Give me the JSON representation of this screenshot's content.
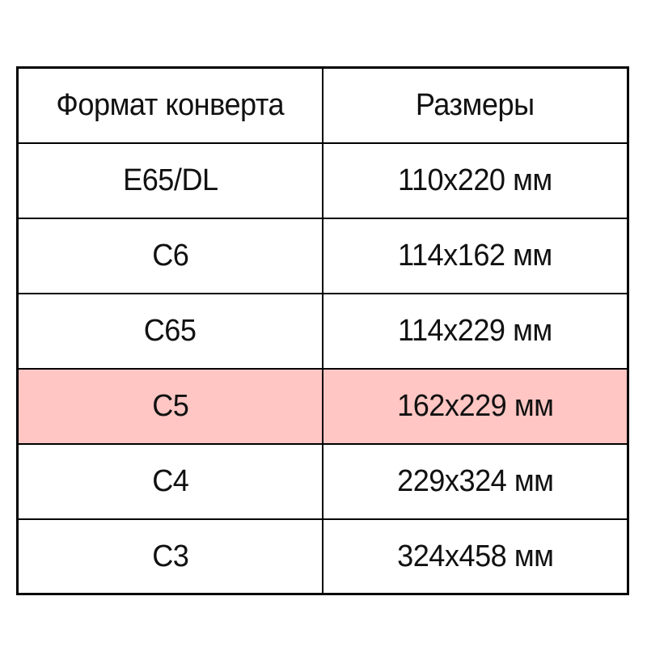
{
  "page": {
    "background": "#ffffff",
    "text_color": "#111111"
  },
  "table": {
    "border_color": "#000000",
    "highlight_color": "#ffc6c3",
    "header": {
      "col1": "Формат конверта",
      "col2": "Размеры"
    },
    "rows": [
      {
        "format": "E65/DL",
        "size": "110x220 мм",
        "highlighted": false
      },
      {
        "format": "C6",
        "size": "114x162 мм",
        "highlighted": false
      },
      {
        "format": "C65",
        "size": "114x229 мм",
        "highlighted": false
      },
      {
        "format": "C5",
        "size": "162x229 мм",
        "highlighted": true
      },
      {
        "format": "C4",
        "size": "229x324 мм",
        "highlighted": false
      },
      {
        "format": "C3",
        "size": "324x458 мм",
        "highlighted": false
      }
    ]
  },
  "chart_data": {
    "type": "table",
    "title": "",
    "columns": [
      "Формат конверта",
      "Размеры"
    ],
    "rows": [
      [
        "E65/DL",
        "110x220 мм"
      ],
      [
        "C6",
        "114x162 мм"
      ],
      [
        "C65",
        "114x229 мм"
      ],
      [
        "C5",
        "162x229 мм"
      ],
      [
        "C4",
        "229x324 мм"
      ],
      [
        "C3",
        "324x458 мм"
      ]
    ],
    "highlighted_row": "C5",
    "highlight_color": "#ffc6c3"
  }
}
